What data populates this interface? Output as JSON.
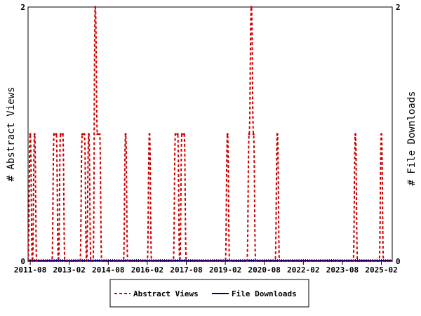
{
  "chart_data": {
    "type": "line",
    "title": "",
    "ylabel_left": "# Abstract Views",
    "ylabel_right": "# File Downloads",
    "y_ticks_left": [
      "0",
      "2"
    ],
    "y_ticks_right": [
      "0",
      "2"
    ],
    "ylim": [
      0,
      2
    ],
    "x_range": [
      "2011-07",
      "2025-07"
    ],
    "x_tick_labels": [
      "2011-08",
      "2013-02",
      "2014-08",
      "2016-02",
      "2017-08",
      "2019-02",
      "2020-08",
      "2022-02",
      "2023-08",
      "2025-02"
    ],
    "x_tick_dates": [
      "2011-08",
      "2013-02",
      "2014-08",
      "2016-02",
      "2017-08",
      "2019-02",
      "2020-08",
      "2022-02",
      "2023-08",
      "2025-02"
    ],
    "series": [
      {
        "name": "Abstract Views",
        "color": "#cc0000",
        "style": "dashed",
        "points": [
          [
            "2011-08",
            1
          ],
          [
            "2011-10",
            1
          ],
          [
            "2012-07",
            1
          ],
          [
            "2012-08",
            1
          ],
          [
            "2012-10",
            1
          ],
          [
            "2012-11",
            1
          ],
          [
            "2013-08",
            1
          ],
          [
            "2013-09",
            1
          ],
          [
            "2013-11",
            1
          ],
          [
            "2014-02",
            2
          ],
          [
            "2014-03",
            1
          ],
          [
            "2014-04",
            1
          ],
          [
            "2015-04",
            1
          ],
          [
            "2016-03",
            1
          ],
          [
            "2017-03",
            1
          ],
          [
            "2017-04",
            1
          ],
          [
            "2017-06",
            1
          ],
          [
            "2017-07",
            1
          ],
          [
            "2019-03",
            1
          ],
          [
            "2020-01",
            1
          ],
          [
            "2020-02",
            2
          ],
          [
            "2020-03",
            1
          ],
          [
            "2021-02",
            1
          ],
          [
            "2024-02",
            1
          ],
          [
            "2025-02",
            1
          ]
        ]
      },
      {
        "name": "File Downloads",
        "color": "#000080",
        "style": "solid",
        "points": []
      }
    ],
    "legend": [
      "Abstract Views",
      "File Downloads"
    ],
    "legend_position": "bottom"
  }
}
